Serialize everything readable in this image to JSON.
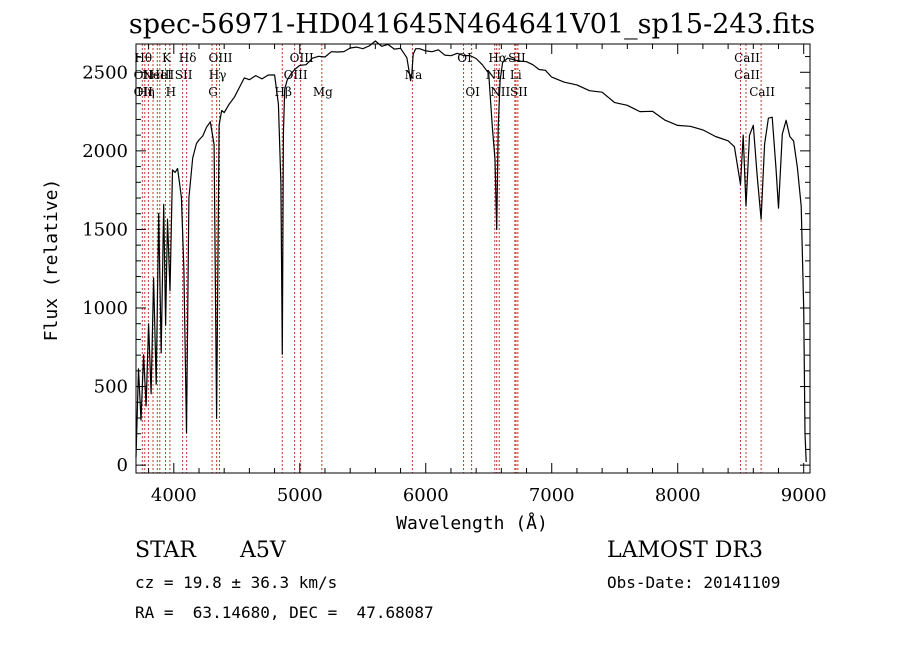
{
  "chart_data": {
    "type": "line",
    "title": "spec-56971-HD041645N464641V01_sp15-243.fits",
    "xlabel": "Wavelength (Å)",
    "ylabel": "Flux (relative)",
    "xlim": [
      3700,
      9050
    ],
    "ylim": [
      -50,
      2680
    ],
    "xticks": [
      4000,
      5000,
      6000,
      7000,
      8000,
      9000
    ],
    "yticks": [
      0,
      500,
      1000,
      1500,
      2000,
      2500
    ],
    "series": [
      {
        "name": "flux",
        "x": [
          3700,
          3720,
          3740,
          3760,
          3780,
          3800,
          3820,
          3840,
          3860,
          3880,
          3900,
          3920,
          3935,
          3950,
          3970,
          3990,
          4010,
          4030,
          4060,
          4080,
          4101,
          4120,
          4150,
          4180,
          4200,
          4230,
          4260,
          4290,
          4320,
          4340,
          4360,
          4380,
          4400,
          4440,
          4480,
          4520,
          4560,
          4600,
          4650,
          4700,
          4750,
          4800,
          4830,
          4850,
          4861,
          4870,
          4880,
          4900,
          4930,
          4960,
          5000,
          5050,
          5100,
          5150,
          5200,
          5250,
          5300,
          5350,
          5400,
          5450,
          5500,
          5550,
          5600,
          5650,
          5700,
          5750,
          5800,
          5850,
          5880,
          5890,
          5900,
          5920,
          5950,
          6000,
          6050,
          6100,
          6150,
          6200,
          6250,
          6300,
          6350,
          6400,
          6450,
          6500,
          6530,
          6550,
          6563,
          6575,
          6590,
          6610,
          6650,
          6700,
          6750,
          6800,
          6850,
          6900,
          6950,
          7000,
          7100,
          7200,
          7300,
          7400,
          7500,
          7600,
          7700,
          7800,
          7900,
          8000,
          8100,
          8200,
          8300,
          8400,
          8450,
          8498,
          8520,
          8542,
          8570,
          8600,
          8630,
          8662,
          8690,
          8720,
          8750,
          8780,
          8800,
          8830,
          8860,
          8890,
          8920,
          8950,
          8980,
          9000,
          9010,
          9020
        ],
        "values": [
          50,
          600,
          300,
          700,
          380,
          900,
          450,
          1200,
          520,
          1600,
          700,
          1650,
          900,
          1550,
          1100,
          1880,
          1850,
          1890,
          1700,
          1250,
          200,
          1700,
          1950,
          2050,
          2080,
          2100,
          2150,
          2200,
          2050,
          300,
          2150,
          2250,
          2250,
          2300,
          2350,
          2400,
          2450,
          2440,
          2480,
          2450,
          2480,
          2470,
          2300,
          1800,
          700,
          2100,
          2400,
          2450,
          2500,
          2530,
          2550,
          2560,
          2580,
          2600,
          2600,
          2620,
          2630,
          2640,
          2660,
          2670,
          2660,
          2680,
          2690,
          2680,
          2690,
          2660,
          2650,
          2600,
          2450,
          2500,
          2620,
          2650,
          2660,
          2650,
          2640,
          2640,
          2620,
          2600,
          2630,
          2620,
          2600,
          2590,
          2560,
          2500,
          2150,
          1950,
          1500,
          2150,
          2450,
          2550,
          2580,
          2590,
          2570,
          2560,
          2540,
          2510,
          2500,
          2480,
          2450,
          2420,
          2390,
          2360,
          2320,
          2300,
          2250,
          2240,
          2200,
          2160,
          2150,
          2120,
          2100,
          2060,
          2040,
          1800,
          2100,
          1650,
          2100,
          2150,
          1850,
          1550,
          2050,
          2200,
          2200,
          1900,
          1650,
          2100,
          2200,
          2100,
          2050,
          1900,
          1650,
          1000,
          200,
          20
        ]
      }
    ],
    "lines": [
      {
        "w": 3750,
        "top": "Hθ",
        "mid": "OII",
        "bot": "OII"
      },
      {
        "w": 3770,
        "top": "",
        "mid": "",
        "bot": "Hη"
      },
      {
        "w": 3798,
        "top": "",
        "mid": "",
        "bot": ""
      },
      {
        "w": 3835,
        "top": "",
        "mid": "",
        "bot": ""
      },
      {
        "w": 3869,
        "top": "",
        "mid": "NeIII",
        "bot": ""
      },
      {
        "w": 3889,
        "top": "",
        "mid": "HeI",
        "bot": ""
      },
      {
        "w": 3934,
        "top": "K",
        "mid": "",
        "bot": ""
      },
      {
        "w": 3969,
        "top": "",
        "mid": "",
        "bot": "H"
      },
      {
        "w": 4070,
        "top": "",
        "mid": "SII",
        "bot": ""
      },
      {
        "w": 4102,
        "top": "Hδ",
        "mid": "",
        "bot": ""
      },
      {
        "w": 4304,
        "top": "",
        "mid": "",
        "bot": "G"
      },
      {
        "w": 4340,
        "top": "",
        "mid": "Hγ",
        "bot": ""
      },
      {
        "w": 4363,
        "top": "OIII",
        "mid": "",
        "bot": ""
      },
      {
        "w": 4861,
        "top": "",
        "mid": "",
        "bot": "Hβ"
      },
      {
        "w": 4959,
        "top": "",
        "mid": "OIII",
        "bot": ""
      },
      {
        "w": 5007,
        "top": "OIII",
        "mid": "",
        "bot": ""
      },
      {
        "w": 5175,
        "top": "",
        "mid": "",
        "bot": "Mg"
      },
      {
        "w": 5894,
        "top": "",
        "mid": "Na",
        "bot": ""
      },
      {
        "w": 6300,
        "top": "OI",
        "mid": "",
        "bot": ""
      },
      {
        "w": 6364,
        "top": "",
        "mid": "",
        "bot": "OI"
      },
      {
        "w": 6548,
        "top": "",
        "mid": "NII",
        "bot": ""
      },
      {
        "w": 6563,
        "top": "Hα",
        "mid": "",
        "bot": ""
      },
      {
        "w": 6583,
        "top": "",
        "mid": "",
        "bot": "NII"
      },
      {
        "w": 6707,
        "top": "",
        "mid": "Li",
        "bot": ""
      },
      {
        "w": 6716,
        "top": "SII",
        "mid": "",
        "bot": ""
      },
      {
        "w": 6731,
        "top": "",
        "mid": "",
        "bot": "SII"
      },
      {
        "w": 8498,
        "top": "",
        "mid": "",
        "bot": ""
      },
      {
        "w": 8542,
        "top": "CaII",
        "mid": "CaII",
        "bot": ""
      },
      {
        "w": 8662,
        "top": "",
        "mid": "",
        "bot": "CaII"
      }
    ]
  },
  "footer": {
    "object_type": "STAR",
    "spectral_class": "A5V",
    "survey": "LAMOST DR3",
    "cz": "cz = 19.8 ± 36.3 km/s",
    "obs_date": "Obs-Date: 20141109",
    "coords": "RA =  63.14680, DEC =  47.68087"
  }
}
